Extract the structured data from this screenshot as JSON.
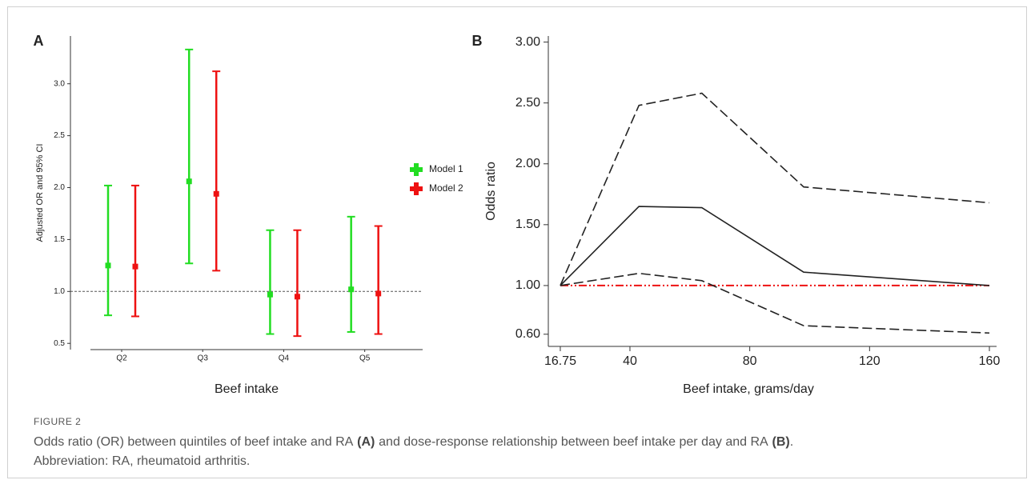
{
  "figure_label": "FIGURE 2",
  "caption": [
    "Odds ratio (OR) between quintiles of beef intake and RA",
    "(A)",
    "and dose-response relationship between beef intake per day and RA",
    "(B)",
    ".",
    "Abbreviation: RA, rheumatoid arthritis."
  ],
  "chart_data": [
    {
      "type": "errorbar",
      "panel": "A",
      "xlabel": "Beef intake",
      "ylabel": "Adjusted OR and 95% CI",
      "categories": [
        "Q2",
        "Q3",
        "Q4",
        "Q5"
      ],
      "series": [
        {
          "name": "Model 1",
          "color": "#22dd22",
          "values": [
            1.25,
            2.06,
            0.97,
            1.02
          ],
          "lower": [
            0.77,
            1.27,
            0.59,
            0.61
          ],
          "upper": [
            2.02,
            3.33,
            1.59,
            1.72
          ]
        },
        {
          "name": "Model 2",
          "color": "#ee1111",
          "values": [
            1.24,
            1.94,
            0.95,
            0.98
          ],
          "lower": [
            0.76,
            1.2,
            0.57,
            0.59
          ],
          "upper": [
            2.02,
            3.12,
            1.59,
            1.63
          ]
        }
      ],
      "ylim": [
        0.44,
        3.46
      ],
      "yticks": [
        0.5,
        {
          "value": 1,
          "label": "1.0"
        },
        1.5,
        {
          "value": 2,
          "label": "2.0"
        },
        2.5,
        {
          "value": 3,
          "label": "3.0"
        }
      ],
      "refline": 1,
      "refline_color": "#555555",
      "legend": "right"
    },
    {
      "type": "line",
      "panel": "B",
      "xlabel": "Beef intake, grams/day",
      "ylabel": "Odds ratio",
      "x": [
        16.75,
        43,
        64,
        98,
        160
      ],
      "series": [
        {
          "color": "#222222",
          "style": "solid",
          "values": [
            1.0,
            1.65,
            1.64,
            1.11,
            1.0
          ]
        },
        {
          "color": "#222222",
          "style": "dashed",
          "values": [
            1.0,
            2.48,
            2.58,
            1.81,
            1.68
          ]
        },
        {
          "color": "#222222",
          "style": "dashed",
          "values": [
            1.0,
            1.1,
            1.04,
            0.67,
            0.61
          ]
        }
      ],
      "xlim": [
        12.75,
        162.4
      ],
      "xticks": [
        16.75,
        40,
        80,
        120,
        160
      ],
      "ylim": [
        0.5,
        3.05
      ],
      "yticks": [
        {
          "value": 0.6,
          "label": "0.60"
        },
        {
          "value": 1,
          "label": "1.00"
        },
        {
          "value": 1.5,
          "label": "1.50"
        },
        {
          "value": 2,
          "label": "2.00"
        },
        {
          "value": 2.5,
          "label": "2.50"
        },
        {
          "value": 3,
          "label": "3.00"
        }
      ],
      "refline": 1,
      "refline_color": "#ee1111"
    }
  ]
}
